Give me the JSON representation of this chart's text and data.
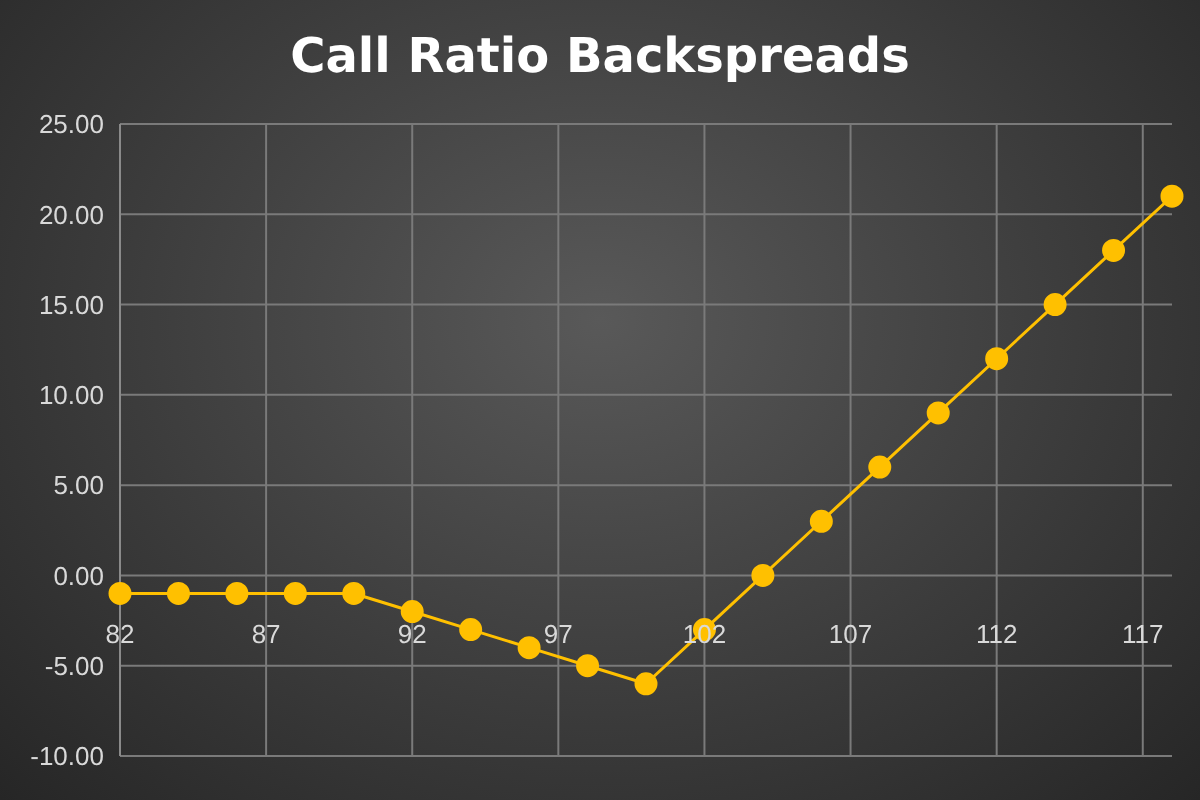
{
  "chart_data": {
    "type": "line",
    "title": "Call Ratio Backspreads",
    "x": [
      82,
      84,
      86,
      88,
      90,
      92,
      94,
      96,
      98,
      100,
      102,
      104,
      106,
      108,
      110,
      112,
      114,
      116,
      118
    ],
    "series": [
      {
        "color": "#ffc000",
        "values": [
          -1,
          -1,
          -1,
          -1,
          -1,
          -2,
          -3,
          -4,
          -5,
          -6,
          -3,
          0,
          3,
          6,
          9,
          12,
          15,
          18,
          21
        ]
      }
    ],
    "xlim": [
      82,
      118
    ],
    "xticks": [
      82,
      87,
      92,
      97,
      102,
      107,
      112,
      117
    ],
    "ylim": [
      -10,
      25
    ],
    "yticks": [
      {
        "value": -10,
        "label": "-10.00"
      },
      {
        "value": -5,
        "label": "-5.00"
      },
      {
        "value": 0,
        "label": "0.00"
      },
      {
        "value": 5,
        "label": "5.00"
      },
      {
        "value": 10,
        "label": "10.00"
      },
      {
        "value": 15,
        "label": "15.00"
      },
      {
        "value": 20,
        "label": "20.00"
      },
      {
        "value": 25,
        "label": "25.00"
      }
    ],
    "grid": true,
    "marker": "circle",
    "line_style": "solid",
    "legend": false
  }
}
